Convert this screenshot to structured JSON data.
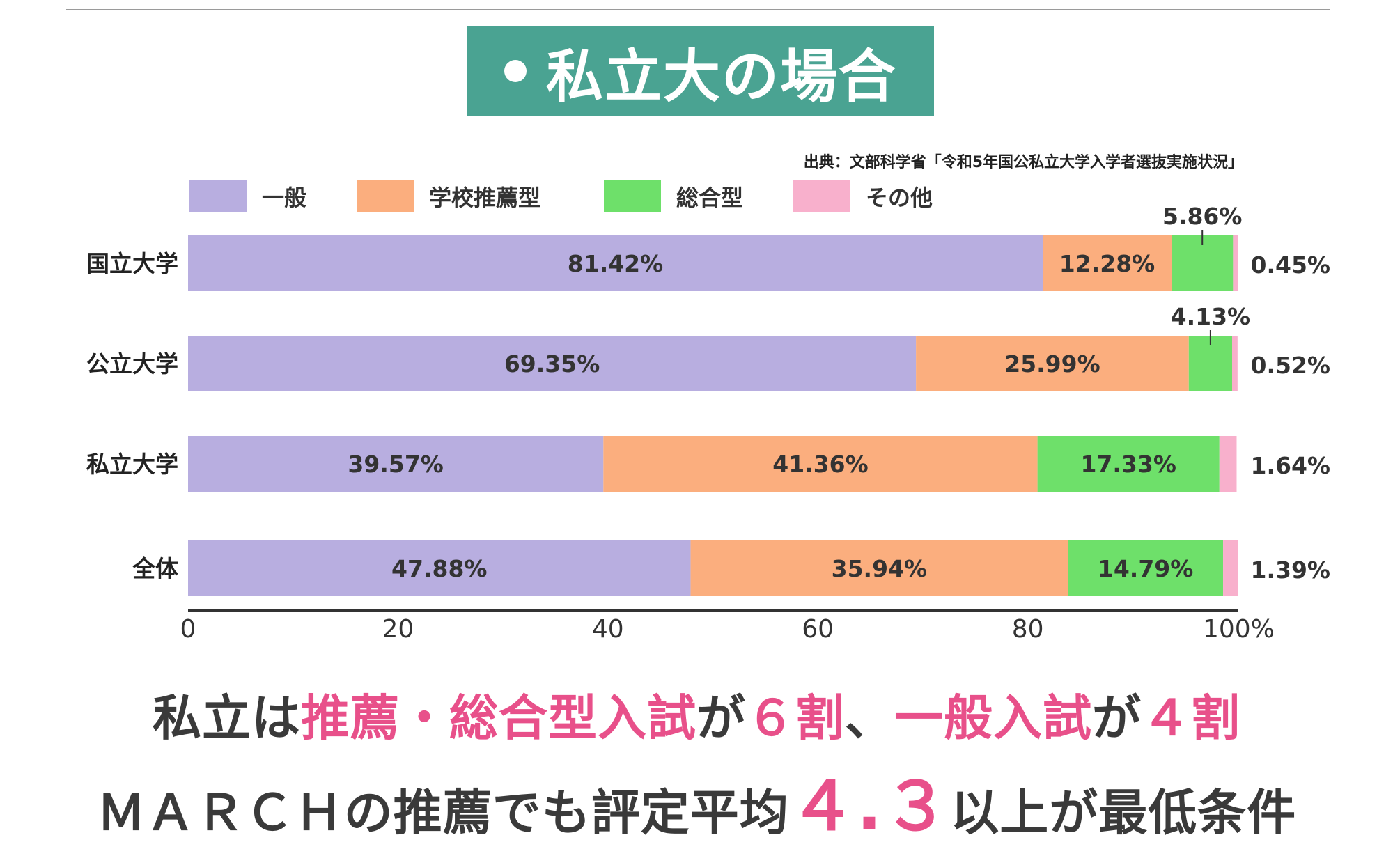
{
  "header": {
    "title": "私立大の場合",
    "source": "出典：文部科学省「令和5年国公私立大学入学者選抜実施状況」"
  },
  "colors": {
    "general": "#b8aee0",
    "school_recommendation": "#fbae7e",
    "comprehensive": "#6ee06a",
    "other": "#f8b0cc",
    "title_bg": "#4aa392",
    "accent_pink": "#e8508a"
  },
  "chart_data": {
    "type": "bar",
    "orientation": "horizontal",
    "stacked": true,
    "categories": [
      "国立大学",
      "公立大学",
      "私立大学",
      "全体"
    ],
    "series": [
      {
        "name": "一般",
        "values": [
          81.42,
          69.35,
          39.57,
          47.88
        ]
      },
      {
        "name": "学校推薦型",
        "values": [
          12.28,
          25.99,
          41.36,
          35.94
        ]
      },
      {
        "name": "総合型",
        "values": [
          5.86,
          4.13,
          17.33,
          14.79
        ]
      },
      {
        "name": "その他",
        "values": [
          0.45,
          0.52,
          1.64,
          1.39
        ]
      }
    ],
    "data_labels": [
      [
        "81.42%",
        "12.28%",
        "5.86%",
        "0.45%"
      ],
      [
        "69.35%",
        "25.99%",
        "4.13%",
        "0.52%"
      ],
      [
        "39.57%",
        "41.36%",
        "17.33%",
        "1.64%"
      ],
      [
        "47.88%",
        "35.94%",
        "14.79%",
        "1.39%"
      ]
    ],
    "x_ticks": [
      "0",
      "20",
      "40",
      "60",
      "80",
      "100%"
    ],
    "xlim": [
      0,
      100
    ],
    "legend_position": "top"
  },
  "bottom": {
    "line1": [
      {
        "text": "私立は",
        "style": ""
      },
      {
        "text": "推薦・総合型入試",
        "style": "pink"
      },
      {
        "text": "が",
        "style": ""
      },
      {
        "text": "６割",
        "style": "pink"
      },
      {
        "text": "、",
        "style": ""
      },
      {
        "text": "一般入試",
        "style": "pink"
      },
      {
        "text": "が",
        "style": ""
      },
      {
        "text": "４割",
        "style": "pink"
      }
    ],
    "line2": [
      {
        "text": "ＭＡＲＣＨの推薦でも評定平均",
        "style": ""
      },
      {
        "text": "４.３",
        "style": "pink big"
      },
      {
        "text": "以上が最低条件",
        "style": ""
      }
    ]
  }
}
